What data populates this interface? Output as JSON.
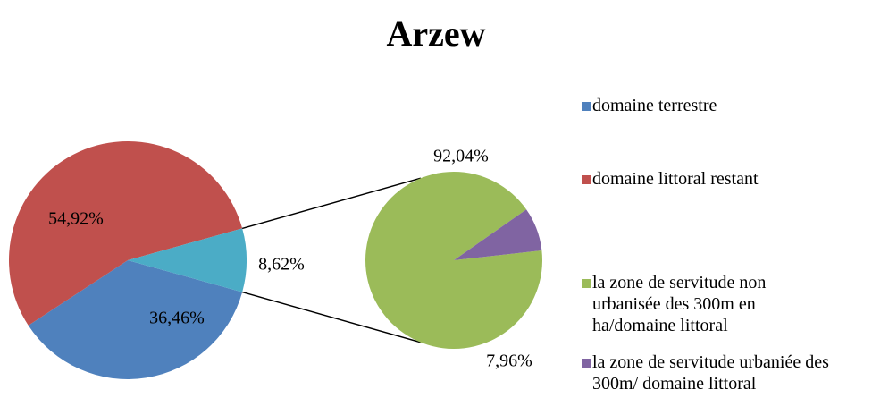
{
  "chart_data": {
    "type": "pie_of_pie",
    "title": "Arzew",
    "primary": {
      "categories": [
        "domaine terrestre",
        "domaine littoral restant",
        null
      ],
      "values": [
        36.46,
        54.92,
        8.62
      ],
      "value_labels": [
        "36,46%",
        "54,92%",
        "8,62%"
      ],
      "colors": [
        "#4f81bd",
        "#c0504d",
        "#4bacc6"
      ]
    },
    "secondary": {
      "categories": [
        "la zone de servitude non urbanisée des 300m en ha/domaine littoral",
        "la zone de servitude urbaniée des 300m/ domaine littoral"
      ],
      "values": [
        92.04,
        7.96
      ],
      "value_labels": [
        "92,04%",
        "7,96%"
      ],
      "colors": [
        "#9bbb59",
        "#8064a2"
      ]
    },
    "legend": "right"
  }
}
